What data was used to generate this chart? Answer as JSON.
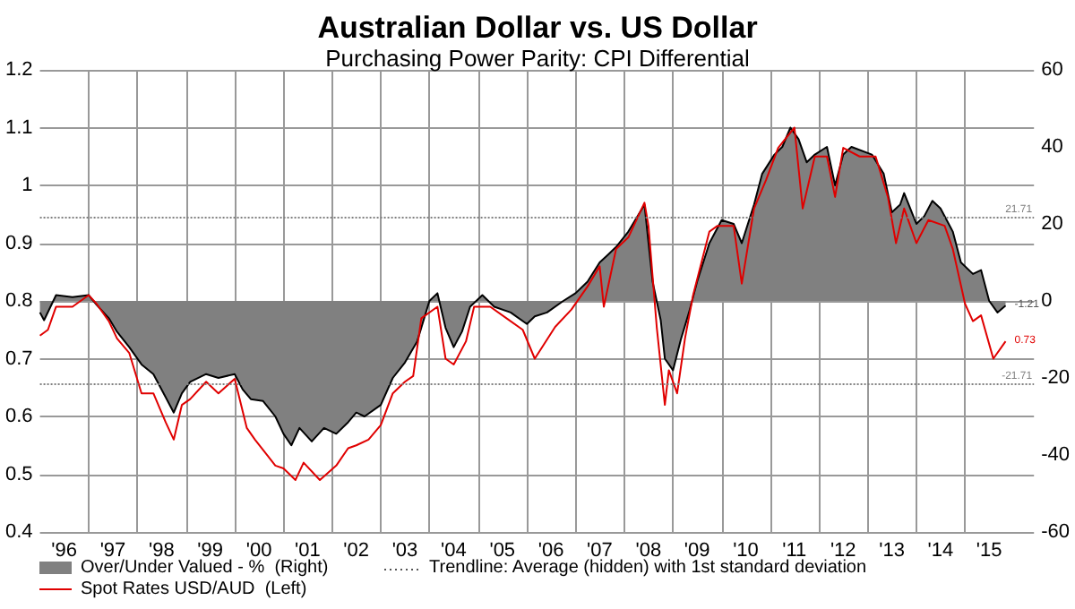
{
  "chart_data": {
    "type": "area",
    "title": "Australian Dollar vs. US Dollar",
    "subtitle": "Purchasing Power Parity: CPI Differential",
    "xlim": [
      "1996-01",
      "2016-06"
    ],
    "xticks": [
      {
        "value": "1996-07",
        "label": "'96"
      },
      {
        "value": "1997",
        "label": null
      },
      {
        "value": "1997-07",
        "label": "'97"
      },
      {
        "value": "1998",
        "label": null
      },
      {
        "value": "1998-07",
        "label": "'98"
      },
      {
        "value": "1999",
        "label": null
      },
      {
        "value": "1999-07",
        "label": "'99"
      },
      {
        "value": "2000",
        "label": null
      },
      {
        "value": "2000-07",
        "label": "'00"
      },
      {
        "value": "2001",
        "label": null
      },
      {
        "value": "2001-07",
        "label": "'01"
      },
      {
        "value": "2002",
        "label": null
      },
      {
        "value": "2002-07",
        "label": "'02"
      },
      {
        "value": "2003",
        "label": null
      },
      {
        "value": "2003-07",
        "label": "'03"
      },
      {
        "value": "2004",
        "label": null
      },
      {
        "value": "2004-07",
        "label": "'04"
      },
      {
        "value": "2005",
        "label": null
      },
      {
        "value": "2005-07",
        "label": "'05"
      },
      {
        "value": "2006",
        "label": null
      },
      {
        "value": "2006-07",
        "label": "'06"
      },
      {
        "value": "2007",
        "label": null
      },
      {
        "value": "2007-07",
        "label": "'07"
      },
      {
        "value": "2008",
        "label": null
      },
      {
        "value": "2008-07",
        "label": "'08"
      },
      {
        "value": "2009",
        "label": null
      },
      {
        "value": "2009-07",
        "label": "'09"
      },
      {
        "value": "2010",
        "label": null
      },
      {
        "value": "2010-07",
        "label": "'10"
      },
      {
        "value": "2011",
        "label": null
      },
      {
        "value": "2011-07",
        "label": "'11"
      },
      {
        "value": "2012",
        "label": null
      },
      {
        "value": "2012-07",
        "label": "'12"
      },
      {
        "value": "2013",
        "label": null
      },
      {
        "value": "2013-07",
        "label": "'13"
      },
      {
        "value": "2014",
        "label": null
      },
      {
        "value": "2014-07",
        "label": "'14"
      },
      {
        "value": "2015",
        "label": null
      },
      {
        "value": "2015-07",
        "label": "'15"
      }
    ],
    "ylim": [
      0.4,
      1.2
    ],
    "yticks": [
      0.4,
      0.5,
      0.6,
      0.7,
      0.8,
      0.9,
      1,
      1.1,
      1.2
    ],
    "y2lim": [
      -60,
      60
    ],
    "y2ticks": [
      -60,
      -40,
      -20,
      0,
      20,
      40,
      60
    ],
    "grid": true,
    "legend": "bottom left",
    "series": [
      {
        "name": "Over/Under Valued - %  (Right)",
        "axis": "y2",
        "color": "#808080",
        "x": [
          "1996-01",
          "1996-02",
          "1996-05",
          "1996-09",
          "1997-01",
          "1997-03",
          "1997-06",
          "1997-08",
          "1997-11",
          "1998-02",
          "1998-05",
          "1998-08",
          "1998-10",
          "1998-12",
          "1999-02",
          "1999-06",
          "1999-09",
          "2000-01",
          "2000-03",
          "2000-05",
          "2000-08",
          "2000-11",
          "2001-01",
          "2001-03",
          "2001-05",
          "2001-08",
          "2001-11",
          "2002-02",
          "2002-05",
          "2002-07",
          "2002-09",
          "2003-01",
          "2003-04",
          "2003-07",
          "2003-10",
          "2004-01",
          "2004-03",
          "2004-05",
          "2004-07",
          "2004-09",
          "2004-11",
          "2005-02",
          "2005-05",
          "2005-09",
          "2006-01",
          "2006-03",
          "2006-06",
          "2006-10",
          "2007-01",
          "2007-04",
          "2007-07",
          "2007-09",
          "2007-11",
          "2008-02",
          "2008-06",
          "2008-08",
          "2008-10",
          "2008-11",
          "2009-01",
          "2009-03",
          "2009-05",
          "2009-07",
          "2009-10",
          "2010-01",
          "2010-04",
          "2010-06",
          "2010-09",
          "2010-11",
          "2011-02",
          "2011-04",
          "2011-06",
          "2011-08",
          "2011-10",
          "2011-12",
          "2012-03",
          "2012-05",
          "2012-07",
          "2012-09",
          "2013-02",
          "2013-05",
          "2013-07",
          "2013-09",
          "2013-10",
          "2014-01",
          "2014-03",
          "2014-05",
          "2014-07",
          "2014-10",
          "2014-12",
          "2015-03",
          "2015-05",
          "2015-07",
          "2015-09",
          "2015-11"
        ],
        "values": [
          -3,
          -5,
          1.5,
          1,
          1.5,
          -1,
          -4.5,
          -8,
          -12,
          -16.5,
          -19,
          -25,
          -29,
          -24,
          -21,
          -19,
          -20,
          -19,
          -23,
          -25.5,
          -26,
          -30,
          -34.5,
          -37.5,
          -33,
          -36.5,
          -33,
          -34.5,
          -31.5,
          -29,
          -30,
          -27,
          -20,
          -16,
          -10.5,
          0,
          2,
          -7,
          -12,
          -8,
          -1.5,
          1.5,
          -1.5,
          -3,
          -6,
          -4,
          -3,
          0,
          2,
          5,
          10,
          12,
          14,
          18,
          25,
          5,
          -5,
          -15,
          -18,
          -10,
          -3,
          5,
          15,
          21,
          20,
          15,
          25,
          33,
          38,
          40,
          45,
          42,
          36,
          38,
          40,
          30,
          38,
          40,
          38,
          33,
          23,
          25,
          28,
          20,
          22,
          26,
          24,
          18,
          10,
          7,
          8,
          0,
          -3,
          -1.21
        ],
        "value_labels": [
          null,
          null,
          null,
          null,
          null,
          null,
          null,
          null,
          null,
          null,
          null,
          null,
          null,
          null,
          null,
          null,
          null,
          null,
          null,
          null,
          null,
          null,
          null,
          null,
          null,
          null,
          null,
          null,
          null,
          null,
          null,
          null,
          null,
          null,
          null,
          null,
          null,
          null,
          null,
          null,
          null,
          null,
          null,
          null,
          null,
          null,
          null,
          null,
          null,
          null,
          null,
          null,
          null,
          null,
          null,
          null,
          null,
          null,
          null,
          null,
          null,
          null,
          null,
          null,
          null,
          null,
          null,
          null,
          null,
          null,
          null,
          null,
          null,
          null,
          null,
          null,
          null,
          null,
          null,
          null,
          null,
          null,
          null,
          null,
          null,
          null,
          null,
          null,
          null,
          null,
          null,
          null,
          null,
          "-1.21"
        ]
      },
      {
        "name": "Spot Rates USD/AUD  (Left)",
        "type": "line",
        "color": "#e00000",
        "x": [
          "1996-01",
          "1996-03",
          "1996-05",
          "1996-09",
          "1997-01",
          "1997-03",
          "1997-06",
          "1997-08",
          "1997-11",
          "1998-02",
          "1998-05",
          "1998-08",
          "1998-10",
          "1998-12",
          "1999-02",
          "1999-06",
          "1999-09",
          "2000-01",
          "2000-04",
          "2000-06",
          "2000-11",
          "2001-01",
          "2001-04",
          "2001-06",
          "2001-10",
          "2002-02",
          "2002-05",
          "2002-07",
          "2002-10",
          "2003-01",
          "2003-04",
          "2003-07",
          "2003-09",
          "2003-11",
          "2004-03",
          "2004-05",
          "2004-07",
          "2004-10",
          "2004-12",
          "2005-04",
          "2005-08",
          "2005-12",
          "2006-03",
          "2006-08",
          "2006-12",
          "2007-04",
          "2007-07",
          "2007-08",
          "2007-11",
          "2008-02",
          "2008-06",
          "2008-07",
          "2008-09",
          "2008-11",
          "2008-12",
          "2009-02",
          "2009-04",
          "2009-06",
          "2009-10",
          "2009-12",
          "2010-04",
          "2010-06",
          "2010-09",
          "2010-12",
          "2011-03",
          "2011-07",
          "2011-09",
          "2011-12",
          "2012-03",
          "2012-05",
          "2012-07",
          "2012-11",
          "2013-03",
          "2013-06",
          "2013-08",
          "2013-10",
          "2014-01",
          "2014-04",
          "2014-08",
          "2014-10",
          "2015-01",
          "2015-03",
          "2015-05",
          "2015-08",
          "2015-11"
        ],
        "values": [
          0.74,
          0.75,
          0.79,
          0.79,
          0.81,
          0.795,
          0.765,
          0.735,
          0.71,
          0.64,
          0.64,
          0.59,
          0.56,
          0.62,
          0.63,
          0.66,
          0.64,
          0.665,
          0.58,
          0.56,
          0.515,
          0.51,
          0.49,
          0.52,
          0.49,
          0.515,
          0.545,
          0.55,
          0.56,
          0.585,
          0.64,
          0.66,
          0.67,
          0.77,
          0.79,
          0.7,
          0.69,
          0.73,
          0.79,
          0.79,
          0.77,
          0.75,
          0.7,
          0.755,
          0.785,
          0.825,
          0.86,
          0.79,
          0.89,
          0.91,
          0.97,
          0.93,
          0.755,
          0.62,
          0.68,
          0.64,
          0.735,
          0.81,
          0.92,
          0.93,
          0.93,
          0.83,
          0.96,
          1.01,
          1.065,
          1.1,
          0.96,
          1.05,
          1.05,
          0.98,
          1.065,
          1.05,
          1.05,
          0.98,
          0.9,
          0.96,
          0.9,
          0.94,
          0.93,
          0.89,
          0.795,
          0.765,
          0.775,
          0.7,
          0.73
        ],
        "value_labels": [
          null,
          null,
          null,
          null,
          null,
          null,
          null,
          null,
          null,
          null,
          null,
          null,
          null,
          null,
          null,
          null,
          null,
          null,
          null,
          null,
          null,
          null,
          null,
          null,
          null,
          null,
          null,
          null,
          null,
          null,
          null,
          null,
          null,
          null,
          null,
          null,
          null,
          null,
          null,
          null,
          null,
          null,
          null,
          null,
          null,
          null,
          null,
          null,
          null,
          null,
          null,
          null,
          null,
          null,
          null,
          null,
          null,
          null,
          null,
          null,
          null,
          null,
          null,
          null,
          null,
          null,
          null,
          null,
          null,
          null,
          null,
          null,
          null,
          null,
          null,
          null,
          null,
          null,
          null,
          null,
          null,
          null,
          null,
          null,
          "0.73"
        ]
      }
    ],
    "ref_lines": [
      {
        "axis": "y2",
        "value": 21.71,
        "label": "21.71",
        "line_style": "dotted",
        "color": "#808080"
      },
      {
        "axis": "y2",
        "value": -21.71,
        "label": "-21.71",
        "line_style": "dotted",
        "color": "#808080"
      }
    ],
    "annotations": [
      "Trendline: Average (hidden) with 1st standard deviation"
    ]
  }
}
